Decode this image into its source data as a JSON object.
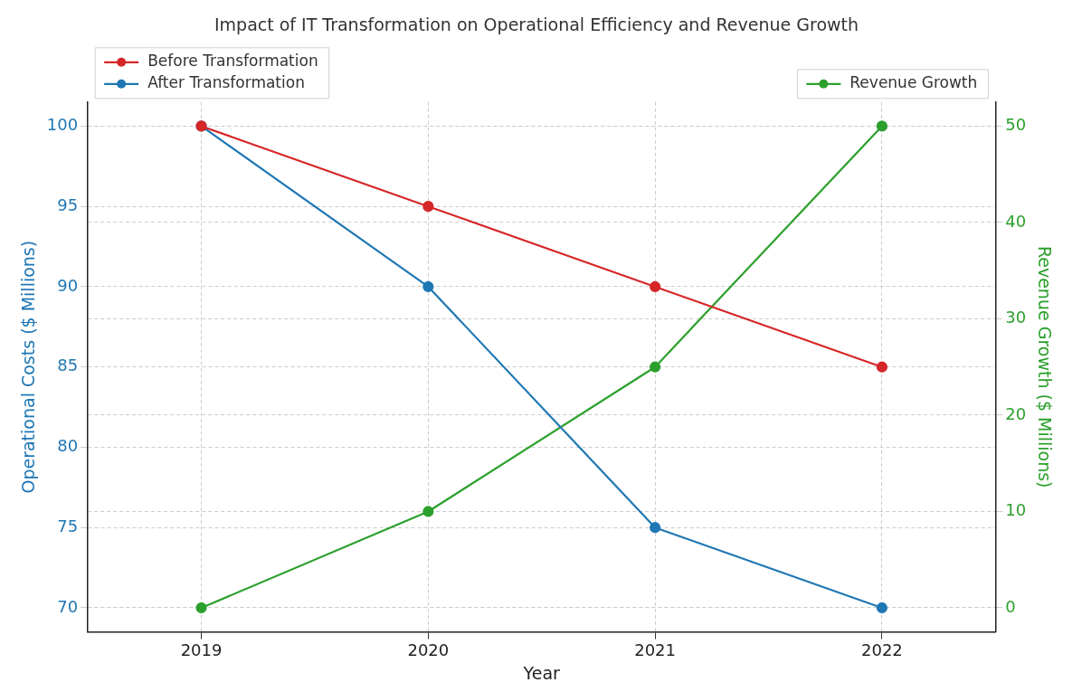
{
  "chart_data": {
    "type": "line",
    "title": "Impact of IT Transformation on Operational Efficiency and Revenue Growth",
    "xlabel": "Year",
    "ylabel": "Operational Costs ($ Millions)",
    "y2label": "Revenue Growth ($ Millions)",
    "categories": [
      "2019",
      "2020",
      "2021",
      "2022"
    ],
    "series": [
      {
        "name": "Before Transformation",
        "color": "#d62728",
        "values": [
          100,
          95,
          90,
          85
        ]
      },
      {
        "name": "After Transformation",
        "color": "#1f77b4",
        "values": [
          100,
          90,
          75,
          70
        ]
      },
      {
        "name": "Revenue Growth",
        "color": "#2ca02c",
        "values": [
          0,
          10,
          25,
          50
        ],
        "axis": "y2"
      }
    ],
    "ylim": [
      68.5,
      101.5
    ],
    "yticks": [
      70,
      75,
      80,
      85,
      90,
      95,
      100
    ],
    "y2lim": [
      -2.5,
      52.5
    ],
    "y2ticks": [
      0,
      10,
      20,
      30,
      40,
      50
    ],
    "grid": true,
    "legend": "top left",
    "marker": "circle",
    "line_style": "solid"
  }
}
